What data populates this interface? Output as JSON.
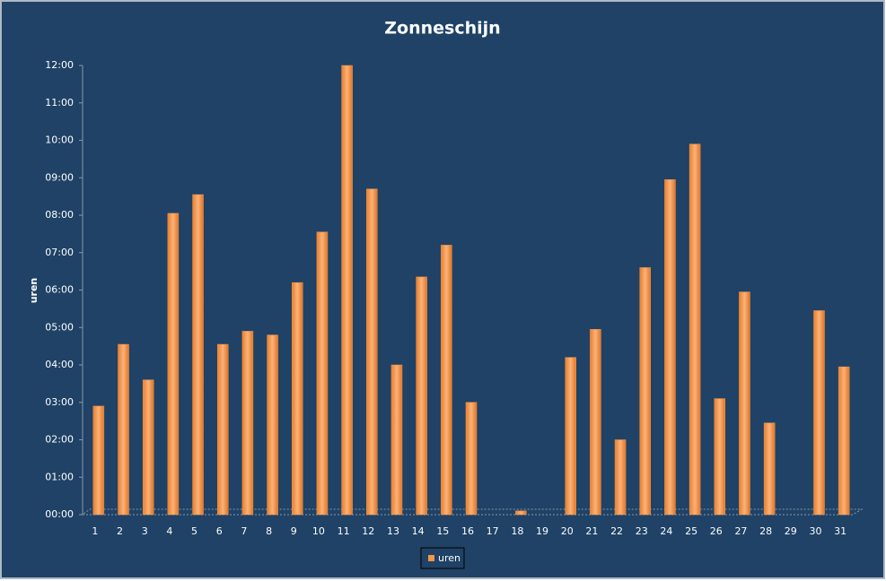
{
  "chart_data": {
    "type": "bar",
    "title": "Zonneschijn",
    "y_label": "uren",
    "categories": [
      "1",
      "2",
      "3",
      "4",
      "5",
      "6",
      "7",
      "8",
      "9",
      "10",
      "11",
      "12",
      "13",
      "14",
      "15",
      "16",
      "17",
      "18",
      "19",
      "20",
      "21",
      "22",
      "23",
      "24",
      "25",
      "26",
      "27",
      "28",
      "29",
      "30",
      "31"
    ],
    "series": [
      {
        "name": "uren",
        "color": "#f79646",
        "values": [
          2.9,
          4.55,
          3.6,
          8.05,
          8.55,
          4.55,
          4.9,
          4.8,
          6.2,
          7.55,
          12.0,
          8.7,
          4.0,
          6.35,
          7.2,
          3.0,
          0,
          0.1,
          0,
          4.2,
          4.95,
          2.0,
          6.6,
          8.95,
          9.9,
          3.1,
          5.95,
          2.45,
          0,
          5.45,
          3.95
        ]
      }
    ],
    "ylim": [
      0,
      12
    ],
    "yticks": [
      {
        "value": 0,
        "label": "00:00"
      },
      {
        "value": 1,
        "label": "01:00"
      },
      {
        "value": 2,
        "label": "02:00"
      },
      {
        "value": 3,
        "label": "03:00"
      },
      {
        "value": 4,
        "label": "04:00"
      },
      {
        "value": 5,
        "label": "05:00"
      },
      {
        "value": 6,
        "label": "06:00"
      },
      {
        "value": 7,
        "label": "07:00"
      },
      {
        "value": 8,
        "label": "08:00"
      },
      {
        "value": 9,
        "label": "09:00"
      },
      {
        "value": 10,
        "label": "10:00"
      },
      {
        "value": 11,
        "label": "11:00"
      },
      {
        "value": 12,
        "label": "12:00"
      }
    ],
    "legend": "bottom"
  }
}
